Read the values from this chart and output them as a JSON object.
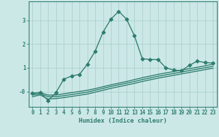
{
  "xlabel": "Humidex (Indice chaleur)",
  "background_color": "#cce8e6",
  "grid_color": "#aacfcc",
  "line_color": "#2e7d6e",
  "x_values": [
    0,
    1,
    2,
    3,
    4,
    5,
    6,
    7,
    8,
    9,
    10,
    11,
    12,
    13,
    14,
    15,
    16,
    17,
    18,
    19,
    20,
    21,
    22,
    23
  ],
  "series1": [
    -0.08,
    -0.05,
    -0.38,
    -0.05,
    0.52,
    0.65,
    0.72,
    1.15,
    1.7,
    2.5,
    3.05,
    3.38,
    3.05,
    2.35,
    1.38,
    1.35,
    1.35,
    1.0,
    0.9,
    0.88,
    1.1,
    1.28,
    1.22,
    1.2
  ],
  "series2": [
    -0.08,
    -0.05,
    -0.15,
    -0.15,
    -0.1,
    -0.05,
    0.0,
    0.05,
    0.12,
    0.2,
    0.28,
    0.35,
    0.42,
    0.5,
    0.58,
    0.65,
    0.72,
    0.78,
    0.84,
    0.9,
    0.96,
    1.02,
    1.08,
    1.15
  ],
  "series3": [
    -0.15,
    -0.1,
    -0.22,
    -0.22,
    -0.18,
    -0.13,
    -0.08,
    -0.03,
    0.05,
    0.13,
    0.21,
    0.28,
    0.35,
    0.42,
    0.5,
    0.57,
    0.64,
    0.7,
    0.76,
    0.82,
    0.88,
    0.94,
    1.0,
    1.06
  ],
  "series4": [
    -0.22,
    -0.15,
    -0.32,
    -0.3,
    -0.26,
    -0.21,
    -0.16,
    -0.11,
    -0.03,
    0.05,
    0.13,
    0.2,
    0.27,
    0.34,
    0.42,
    0.49,
    0.56,
    0.62,
    0.68,
    0.74,
    0.8,
    0.86,
    0.92,
    0.98
  ],
  "ylim": [
    -0.65,
    3.8
  ],
  "xlim": [
    -0.5,
    23.5
  ],
  "yticks": [
    0,
    1,
    2,
    3
  ],
  "ytick_labels": [
    "-0",
    "1",
    "2",
    "3"
  ],
  "xticks": [
    0,
    1,
    2,
    3,
    4,
    5,
    6,
    7,
    8,
    9,
    10,
    11,
    12,
    13,
    14,
    15,
    16,
    17,
    18,
    19,
    20,
    21,
    22,
    23
  ],
  "marker": "D",
  "markersize": 2.5,
  "linewidth": 1.0,
  "axis_fontsize": 6.5,
  "tick_fontsize": 5.5
}
